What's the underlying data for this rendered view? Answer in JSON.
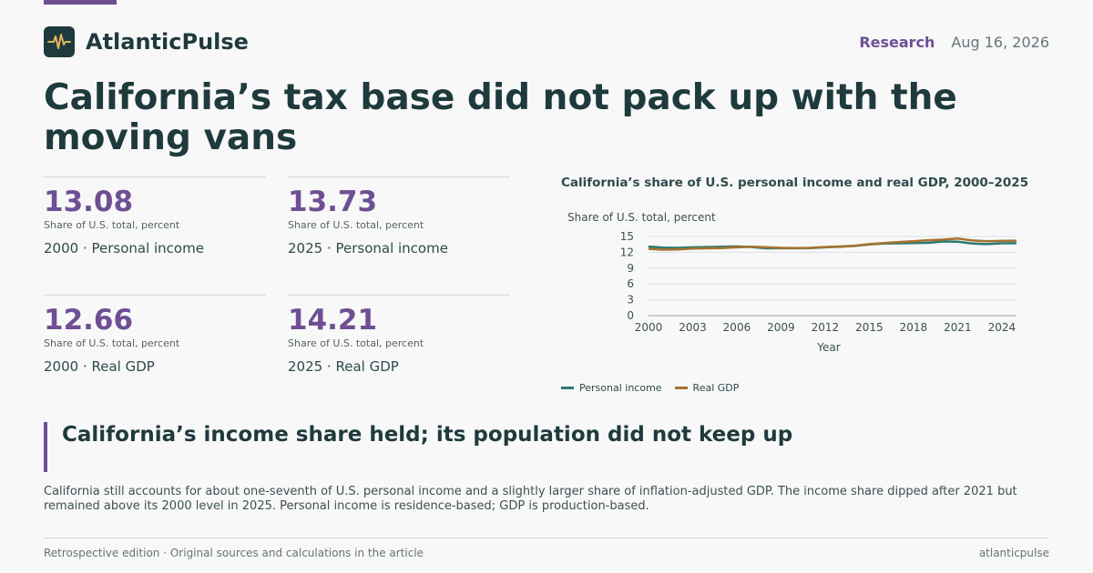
{
  "brand": {
    "name": "AtlanticPulse",
    "logo_icon": "pulse-icon"
  },
  "header": {
    "section": "Research",
    "date": "Aug 16, 2026"
  },
  "headline": "California’s tax base did not pack up with the moving vans",
  "stats": [
    {
      "value": "13.08",
      "unit": "Share of U.S. total, percent",
      "label": "2000 · Personal income"
    },
    {
      "value": "13.73",
      "unit": "Share of U.S. total, percent",
      "label": "2025 · Personal income"
    },
    {
      "value": "12.66",
      "unit": "Share of U.S. total, percent",
      "label": "2000 · Real GDP"
    },
    {
      "value": "14.21",
      "unit": "Share of U.S. total, percent",
      "label": "2025 · Real GDP"
    }
  ],
  "chart_data": {
    "type": "line",
    "title": "California’s share of U.S. personal income and real GDP, 2000–2025",
    "ylabel": "Share of U.S. total, percent",
    "xlabel": "Year",
    "ylim": [
      0,
      15
    ],
    "xlim": [
      2000,
      2025
    ],
    "yticks": [
      0,
      3,
      6,
      9,
      12,
      15
    ],
    "xticks": [
      2000,
      2003,
      2006,
      2009,
      2012,
      2015,
      2018,
      2021,
      2024
    ],
    "grid": true,
    "legend_position": "bottom-left",
    "x": [
      2000,
      2001,
      2002,
      2003,
      2004,
      2005,
      2006,
      2007,
      2008,
      2009,
      2010,
      2011,
      2012,
      2013,
      2014,
      2015,
      2016,
      2017,
      2018,
      2019,
      2020,
      2021,
      2022,
      2023,
      2024,
      2025
    ],
    "series": [
      {
        "name": "Personal income",
        "color": "#2a7a72",
        "values": [
          13.08,
          12.9,
          12.85,
          12.95,
          13.0,
          13.05,
          13.1,
          13.0,
          12.75,
          12.8,
          12.75,
          12.8,
          12.95,
          13.05,
          13.2,
          13.5,
          13.65,
          13.7,
          13.75,
          13.8,
          14.05,
          14.0,
          13.65,
          13.55,
          13.7,
          13.73
        ]
      },
      {
        "name": "Real GDP",
        "color": "#a6722f",
        "values": [
          12.66,
          12.5,
          12.55,
          12.7,
          12.75,
          12.8,
          12.95,
          13.05,
          12.95,
          12.85,
          12.8,
          12.85,
          13.0,
          13.1,
          13.25,
          13.55,
          13.75,
          13.95,
          14.1,
          14.3,
          14.4,
          14.6,
          14.25,
          14.1,
          14.15,
          14.21
        ]
      }
    ]
  },
  "callout": {
    "title": "California’s income share held; its population did not keep up"
  },
  "body": "California still accounts for about one-seventh of U.S. personal income and a slightly larger share of inflation-adjusted GDP. The income share dipped after 2021 but remained above its 2000 level in 2025. Personal income is residence-based; GDP is production-based.",
  "footer": {
    "left": "Retrospective edition · Original sources and calculations in the article",
    "right": "atlanticpulse"
  },
  "colors": {
    "accent": "#6f4f94",
    "ink": "#1f3a3d",
    "background": "#f7f8f7"
  }
}
